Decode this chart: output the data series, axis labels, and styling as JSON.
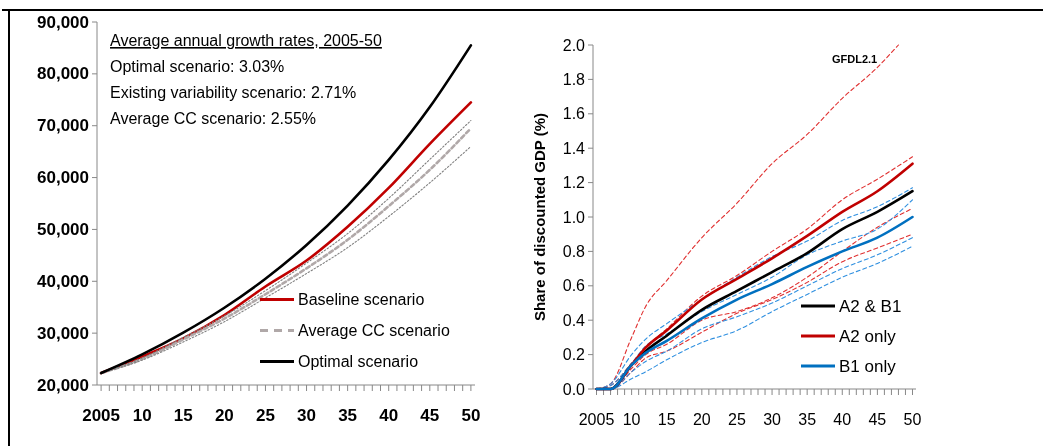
{
  "chart_data": [
    {
      "type": "line",
      "annotations": [
        "Average annual growth rates, 2005-50",
        "Optimal scenario: 3.03%",
        "Existing variability scenario: 2.71%",
        "Average CC scenario: 2.55%"
      ],
      "x": [
        2005,
        2010,
        2015,
        2020,
        2025,
        2030,
        2035,
        2040,
        2045,
        2050
      ],
      "series": [
        {
          "name": "Baseline scenario",
          "color": "#c00000",
          "line_style": "solid",
          "values": [
            22300,
            25500,
            29000,
            33500,
            39000,
            44000,
            50500,
            58000,
            66500,
            74500
          ]
        },
        {
          "name": "Average CC scenario",
          "color": "#b0a8a8",
          "line_style": "dashed",
          "values": [
            22300,
            25000,
            28800,
            32800,
            37500,
            42500,
            48000,
            54500,
            61500,
            69500
          ]
        },
        {
          "color": "#808080",
          "line_style": "dotted",
          "values": [
            22300,
            25200,
            29200,
            33300,
            38200,
            43500,
            49200,
            56000,
            63500,
            71000
          ]
        },
        {
          "color": "#808080",
          "line_style": "dotted",
          "values": [
            22300,
            24800,
            28300,
            32200,
            36800,
            41500,
            46500,
            52500,
            59000,
            66000
          ]
        },
        {
          "name": "Optimal scenario",
          "color": "#000000",
          "line_style": "solid",
          "values": [
            22300,
            25900,
            30100,
            34900,
            40500,
            47000,
            54600,
            63400,
            73600,
            85500
          ]
        }
      ],
      "xlim": [
        2004.5,
        2050.5
      ],
      "ylim": [
        20000,
        90000
      ],
      "xticks": [
        {
          "value": 2005,
          "label": "2005"
        },
        {
          "value": 2006,
          "label": null
        },
        {
          "value": 2007,
          "label": null
        },
        {
          "value": 2008,
          "label": null
        },
        {
          "value": 2009,
          "label": null
        },
        {
          "value": 2010,
          "label": "10"
        },
        {
          "value": 2011,
          "label": null
        },
        {
          "value": 2012,
          "label": null
        },
        {
          "value": 2013,
          "label": null
        },
        {
          "value": 2014,
          "label": null
        },
        {
          "value": 2015,
          "label": "15"
        },
        {
          "value": 2016,
          "label": null
        },
        {
          "value": 2017,
          "label": null
        },
        {
          "value": 2018,
          "label": null
        },
        {
          "value": 2019,
          "label": null
        },
        {
          "value": 2020,
          "label": "20"
        },
        {
          "value": 2021,
          "label": null
        },
        {
          "value": 2022,
          "label": null
        },
        {
          "value": 2023,
          "label": null
        },
        {
          "value": 2024,
          "label": null
        },
        {
          "value": 2025,
          "label": "25"
        },
        {
          "value": 2026,
          "label": null
        },
        {
          "value": 2027,
          "label": null
        },
        {
          "value": 2028,
          "label": null
        },
        {
          "value": 2029,
          "label": null
        },
        {
          "value": 2030,
          "label": "30"
        },
        {
          "value": 2031,
          "label": null
        },
        {
          "value": 2032,
          "label": null
        },
        {
          "value": 2033,
          "label": null
        },
        {
          "value": 2034,
          "label": null
        },
        {
          "value": 2035,
          "label": "35"
        },
        {
          "value": 2036,
          "label": null
        },
        {
          "value": 2037,
          "label": null
        },
        {
          "value": 2038,
          "label": null
        },
        {
          "value": 2039,
          "label": null
        },
        {
          "value": 2040,
          "label": "40"
        },
        {
          "value": 2041,
          "label": null
        },
        {
          "value": 2042,
          "label": null
        },
        {
          "value": 2043,
          "label": null
        },
        {
          "value": 2044,
          "label": null
        },
        {
          "value": 2045,
          "label": "45"
        },
        {
          "value": 2046,
          "label": null
        },
        {
          "value": 2047,
          "label": null
        },
        {
          "value": 2048,
          "label": null
        },
        {
          "value": 2049,
          "label": null
        },
        {
          "value": 2050,
          "label": "50"
        }
      ],
      "yticks": [
        {
          "value": 20000,
          "label": "20,000"
        },
        {
          "value": 30000,
          "label": "30,000"
        },
        {
          "value": 40000,
          "label": "40,000"
        },
        {
          "value": 50000,
          "label": "50,000"
        },
        {
          "value": 60000,
          "label": "60,000"
        },
        {
          "value": 70000,
          "label": "70,000"
        },
        {
          "value": 80000,
          "label": "80,000"
        },
        {
          "value": 90000,
          "label": "90,000"
        }
      ],
      "grid": false,
      "legend": "bottom right",
      "marker": "none"
    },
    {
      "type": "line",
      "ylabel": "Share of discounted GDP (%)",
      "annotations": [
        "GFDL2.1"
      ],
      "x": [
        2005,
        2007,
        2010,
        2012,
        2015,
        2020,
        2025,
        2030,
        2035,
        2040,
        2045,
        2050
      ],
      "series": [
        {
          "color": "#e03030",
          "line_style": "dashed",
          "x": [
            2005,
            2007,
            2010,
            2012,
            2015,
            2020,
            2025,
            2030,
            2035,
            2040,
            2045,
            2048
          ],
          "values": [
            0,
            0.03,
            0.3,
            0.48,
            0.63,
            0.88,
            1.08,
            1.31,
            1.48,
            1.69,
            1.87,
            2.0
          ]
        },
        {
          "color": "#e03030",
          "line_style": "dashed",
          "values": [
            0,
            0.02,
            0.15,
            0.24,
            0.35,
            0.54,
            0.66,
            0.8,
            0.93,
            1.1,
            1.22,
            1.35
          ]
        },
        {
          "color": "#e03030",
          "line_style": "dashed",
          "values": [
            0,
            0,
            0.12,
            0.2,
            0.26,
            0.4,
            0.45,
            0.53,
            0.65,
            0.8,
            0.94,
            1.05
          ]
        },
        {
          "color": "#e03030",
          "line_style": "dashed",
          "values": [
            0,
            0,
            0.1,
            0.18,
            0.22,
            0.33,
            0.44,
            0.52,
            0.62,
            0.74,
            0.82,
            0.9
          ]
        },
        {
          "color": "#3090e0",
          "line_style": "dashed",
          "values": [
            0,
            0.03,
            0.2,
            0.29,
            0.38,
            0.52,
            0.65,
            0.77,
            0.86,
            0.98,
            1.06,
            1.17
          ]
        },
        {
          "color": "#3090e0",
          "line_style": "dashed",
          "values": [
            0,
            0.02,
            0.15,
            0.25,
            0.32,
            0.45,
            0.55,
            0.65,
            0.78,
            0.86,
            0.93,
            1.1
          ]
        },
        {
          "color": "#3090e0",
          "line_style": "dashed",
          "values": [
            0,
            0,
            0.1,
            0.16,
            0.22,
            0.35,
            0.42,
            0.5,
            0.6,
            0.7,
            0.78,
            0.88
          ]
        },
        {
          "color": "#3090e0",
          "line_style": "dashed",
          "values": [
            0,
            0,
            0.06,
            0.1,
            0.17,
            0.27,
            0.34,
            0.45,
            0.55,
            0.65,
            0.73,
            0.83
          ]
        },
        {
          "name": "A2 & B1",
          "color": "#000000",
          "line_style": "solid",
          "values": [
            0,
            0,
            0.14,
            0.22,
            0.31,
            0.46,
            0.57,
            0.68,
            0.79,
            0.93,
            1.03,
            1.15
          ]
        },
        {
          "name": "A2 only",
          "color": "#c00000",
          "line_style": "solid",
          "values": [
            0,
            0,
            0.14,
            0.24,
            0.34,
            0.52,
            0.64,
            0.76,
            0.89,
            1.03,
            1.15,
            1.31
          ]
        },
        {
          "name": "B1 only",
          "color": "#0070c0",
          "line_style": "solid",
          "values": [
            0,
            0,
            0.14,
            0.21,
            0.28,
            0.41,
            0.52,
            0.61,
            0.71,
            0.8,
            0.88,
            1.0
          ]
        }
      ],
      "xlim": [
        2004.5,
        2050.5
      ],
      "ylim": [
        0,
        2.0
      ],
      "xticks": [
        {
          "value": 2005,
          "label": "2005"
        },
        {
          "value": 2006,
          "label": null
        },
        {
          "value": 2007,
          "label": null
        },
        {
          "value": 2008,
          "label": null
        },
        {
          "value": 2009,
          "label": null
        },
        {
          "value": 2010,
          "label": "10"
        },
        {
          "value": 2011,
          "label": null
        },
        {
          "value": 2012,
          "label": null
        },
        {
          "value": 2013,
          "label": null
        },
        {
          "value": 2014,
          "label": null
        },
        {
          "value": 2015,
          "label": "15"
        },
        {
          "value": 2016,
          "label": null
        },
        {
          "value": 2017,
          "label": null
        },
        {
          "value": 2018,
          "label": null
        },
        {
          "value": 2019,
          "label": null
        },
        {
          "value": 2020,
          "label": "20"
        },
        {
          "value": 2021,
          "label": null
        },
        {
          "value": 2022,
          "label": null
        },
        {
          "value": 2023,
          "label": null
        },
        {
          "value": 2024,
          "label": null
        },
        {
          "value": 2025,
          "label": "25"
        },
        {
          "value": 2026,
          "label": null
        },
        {
          "value": 2027,
          "label": null
        },
        {
          "value": 2028,
          "label": null
        },
        {
          "value": 2029,
          "label": null
        },
        {
          "value": 2030,
          "label": "30"
        },
        {
          "value": 2031,
          "label": null
        },
        {
          "value": 2032,
          "label": null
        },
        {
          "value": 2033,
          "label": null
        },
        {
          "value": 2034,
          "label": null
        },
        {
          "value": 2035,
          "label": "35"
        },
        {
          "value": 2036,
          "label": null
        },
        {
          "value": 2037,
          "label": null
        },
        {
          "value": 2038,
          "label": null
        },
        {
          "value": 2039,
          "label": null
        },
        {
          "value": 2040,
          "label": "40"
        },
        {
          "value": 2041,
          "label": null
        },
        {
          "value": 2042,
          "label": null
        },
        {
          "value": 2043,
          "label": null
        },
        {
          "value": 2044,
          "label": null
        },
        {
          "value": 2045,
          "label": "45"
        },
        {
          "value": 2046,
          "label": null
        },
        {
          "value": 2047,
          "label": null
        },
        {
          "value": 2048,
          "label": null
        },
        {
          "value": 2049,
          "label": null
        },
        {
          "value": 2050,
          "label": "50"
        }
      ],
      "yticks": [
        {
          "value": 0,
          "label": "0.0"
        },
        {
          "value": 0.2,
          "label": "0.2"
        },
        {
          "value": 0.4,
          "label": "0.4"
        },
        {
          "value": 0.6,
          "label": "0.6"
        },
        {
          "value": 0.8,
          "label": "0.8"
        },
        {
          "value": 1.0,
          "label": "1.0"
        },
        {
          "value": 1.2,
          "label": "1.2"
        },
        {
          "value": 1.4,
          "label": "1.4"
        },
        {
          "value": 1.6,
          "label": "1.6"
        },
        {
          "value": 1.8,
          "label": "1.8"
        },
        {
          "value": 2.0,
          "label": "2.0"
        }
      ],
      "grid": false,
      "legend": "bottom right",
      "marker": "none"
    }
  ]
}
